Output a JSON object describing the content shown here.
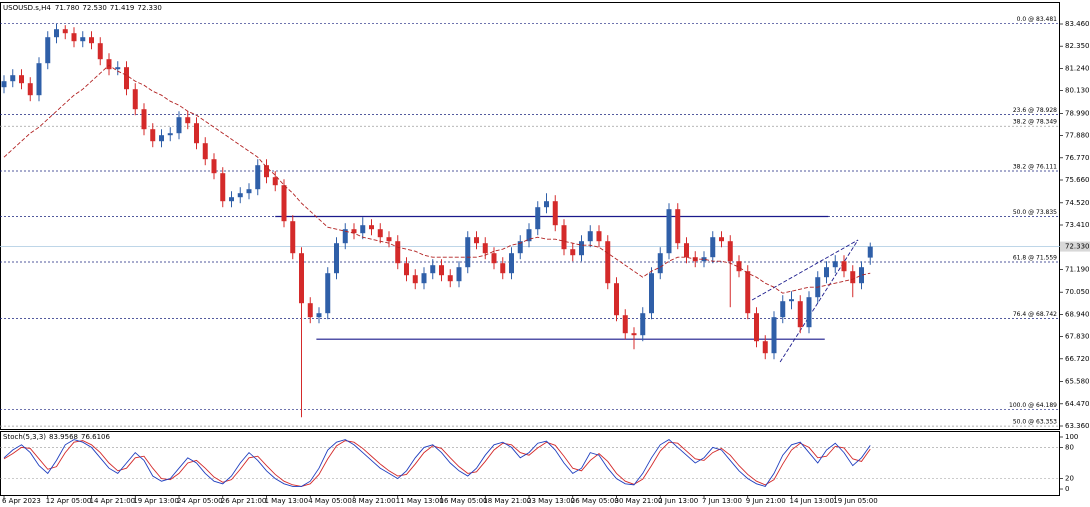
{
  "chart_data": {
    "type": "candlestick",
    "header": {
      "symbol": "USOUSD.s,H4",
      "ohlc": [
        "71.780",
        "72.530",
        "71.419",
        "72.330"
      ]
    },
    "categories": [
      "6 Apr 2023",
      null,
      null,
      null,
      null,
      "12 Apr 05:00",
      null,
      null,
      null,
      null,
      "14 Apr 21:00",
      null,
      null,
      null,
      null,
      "19 Apr 13:00",
      null,
      null,
      null,
      null,
      "24 Apr 05:00",
      null,
      null,
      null,
      null,
      "26 Apr 21:00",
      null,
      null,
      null,
      null,
      "1 May 13:00",
      null,
      null,
      null,
      null,
      "4 May 05:00",
      null,
      null,
      null,
      null,
      "8 May 21:00",
      null,
      null,
      null,
      null,
      "11 May 13:00",
      null,
      null,
      null,
      null,
      "16 May 05:00",
      null,
      null,
      null,
      null,
      "18 May 21:00",
      null,
      null,
      null,
      null,
      "23 May 13:00",
      null,
      null,
      null,
      null,
      "26 May 05:00",
      null,
      null,
      null,
      null,
      "30 May 21:00",
      null,
      null,
      null,
      null,
      "2 Jun 13:00",
      null,
      null,
      null,
      null,
      "7 Jun 13:00",
      null,
      null,
      null,
      null,
      "9 Jun 21:00",
      null,
      null,
      null,
      null,
      "14 Jun 13:00",
      null,
      null,
      null,
      null,
      "19 Jun 05:00",
      null,
      null,
      null,
      null
    ],
    "candles": [
      [
        80.3,
        80.9,
        80.0,
        80.6
      ],
      [
        80.6,
        81.2,
        80.3,
        80.9
      ],
      [
        80.9,
        81.2,
        80.2,
        80.5
      ],
      [
        80.5,
        80.8,
        79.6,
        79.9
      ],
      [
        79.9,
        81.8,
        79.6,
        81.5
      ],
      [
        81.5,
        83.1,
        81.2,
        82.8
      ],
      [
        82.8,
        83.48,
        82.5,
        83.2
      ],
      [
        83.2,
        83.4,
        82.7,
        83.0
      ],
      [
        83.0,
        83.3,
        82.3,
        82.6
      ],
      [
        82.6,
        83.1,
        82.3,
        82.8
      ],
      [
        82.8,
        83.1,
        82.2,
        82.5
      ],
      [
        82.5,
        82.8,
        81.4,
        81.7
      ],
      [
        81.7,
        82.0,
        80.9,
        81.2
      ],
      [
        81.2,
        81.6,
        80.9,
        81.3
      ],
      [
        81.3,
        81.6,
        79.9,
        80.2
      ],
      [
        80.2,
        80.5,
        78.9,
        79.2
      ],
      [
        79.2,
        79.5,
        77.9,
        78.2
      ],
      [
        78.2,
        78.5,
        77.3,
        77.6
      ],
      [
        77.6,
        78.2,
        77.3,
        77.9
      ],
      [
        77.9,
        78.3,
        77.6,
        78.0
      ],
      [
        78.0,
        79.1,
        77.7,
        78.8
      ],
      [
        78.8,
        79.1,
        78.2,
        78.5
      ],
      [
        78.5,
        78.8,
        77.2,
        77.5
      ],
      [
        77.5,
        77.8,
        76.4,
        76.7
      ],
      [
        76.7,
        77.0,
        75.7,
        76.0
      ],
      [
        76.0,
        76.3,
        74.3,
        74.6
      ],
      [
        74.6,
        75.1,
        74.3,
        74.8
      ],
      [
        74.8,
        75.3,
        74.5,
        75.0
      ],
      [
        75.0,
        75.5,
        74.7,
        75.2
      ],
      [
        75.2,
        76.7,
        74.9,
        76.4
      ],
      [
        76.4,
        76.7,
        75.5,
        75.8
      ],
      [
        75.8,
        76.1,
        75.1,
        75.4
      ],
      [
        75.4,
        75.7,
        73.3,
        73.6
      ],
      [
        73.6,
        73.9,
        71.7,
        72.0
      ],
      [
        72.0,
        72.3,
        63.8,
        69.5
      ],
      [
        69.5,
        69.8,
        68.5,
        68.8
      ],
      [
        68.8,
        69.3,
        68.5,
        69.0
      ],
      [
        69.0,
        71.3,
        68.7,
        71.0
      ],
      [
        71.0,
        72.8,
        70.7,
        72.5
      ],
      [
        72.5,
        73.5,
        72.2,
        73.2
      ],
      [
        73.2,
        73.5,
        72.7,
        73.0
      ],
      [
        73.0,
        73.8,
        72.7,
        73.4
      ],
      [
        73.4,
        73.7,
        72.9,
        73.2
      ],
      [
        73.2,
        73.5,
        72.5,
        72.8
      ],
      [
        72.8,
        73.1,
        72.3,
        72.6
      ],
      [
        72.6,
        72.9,
        71.2,
        71.5
      ],
      [
        71.5,
        71.8,
        70.6,
        70.9
      ],
      [
        70.9,
        71.2,
        70.2,
        70.5
      ],
      [
        70.5,
        71.3,
        70.2,
        71.0
      ],
      [
        71.0,
        71.7,
        70.7,
        71.4
      ],
      [
        71.4,
        71.7,
        70.6,
        70.9
      ],
      [
        70.9,
        71.2,
        70.3,
        70.6
      ],
      [
        70.6,
        71.6,
        70.3,
        71.3
      ],
      [
        71.3,
        73.1,
        71.0,
        72.8
      ],
      [
        72.8,
        73.1,
        72.2,
        72.5
      ],
      [
        72.5,
        72.8,
        71.7,
        72.0
      ],
      [
        72.0,
        72.3,
        71.2,
        71.5
      ],
      [
        71.5,
        71.8,
        70.7,
        71.0
      ],
      [
        71.0,
        72.3,
        70.7,
        72.0
      ],
      [
        72.0,
        72.9,
        71.7,
        72.6
      ],
      [
        72.6,
        73.5,
        72.3,
        73.2
      ],
      [
        73.2,
        74.6,
        72.9,
        74.3
      ],
      [
        74.3,
        75.0,
        74.0,
        74.6
      ],
      [
        74.6,
        74.9,
        73.1,
        73.4
      ],
      [
        73.4,
        73.7,
        71.9,
        72.2
      ],
      [
        72.2,
        72.5,
        71.6,
        71.9
      ],
      [
        71.9,
        72.9,
        71.6,
        72.6
      ],
      [
        72.6,
        73.4,
        72.3,
        73.1
      ],
      [
        73.1,
        73.4,
        72.3,
        72.6
      ],
      [
        72.6,
        72.9,
        70.2,
        70.5
      ],
      [
        70.5,
        70.8,
        68.6,
        68.9
      ],
      [
        68.9,
        69.2,
        67.7,
        68.0
      ],
      [
        68.0,
        68.3,
        67.2,
        67.9
      ],
      [
        67.9,
        69.3,
        67.6,
        69.0
      ],
      [
        69.0,
        71.3,
        68.7,
        71.0
      ],
      [
        71.0,
        72.3,
        70.7,
        72.0
      ],
      [
        72.0,
        74.5,
        71.7,
        74.2
      ],
      [
        74.2,
        74.5,
        72.2,
        72.5
      ],
      [
        72.5,
        72.8,
        71.5,
        71.8
      ],
      [
        71.8,
        72.1,
        71.3,
        71.6
      ],
      [
        71.6,
        72.1,
        71.3,
        71.8
      ],
      [
        71.8,
        73.1,
        71.5,
        72.8
      ],
      [
        72.8,
        73.1,
        72.3,
        72.6
      ],
      [
        72.6,
        72.9,
        69.3,
        71.6
      ],
      [
        71.6,
        71.9,
        70.8,
        71.1
      ],
      [
        71.1,
        71.4,
        68.7,
        69.0
      ],
      [
        69.0,
        69.3,
        67.3,
        67.6
      ],
      [
        67.6,
        67.9,
        66.7,
        67.0
      ],
      [
        67.0,
        69.1,
        66.7,
        68.8
      ],
      [
        68.8,
        69.9,
        68.5,
        69.6
      ],
      [
        69.6,
        70.1,
        69.2,
        69.7
      ],
      [
        69.6,
        69.9,
        68.0,
        68.3
      ],
      [
        68.3,
        70.1,
        68.0,
        69.8
      ],
      [
        69.8,
        71.1,
        69.5,
        70.8
      ],
      [
        70.8,
        71.6,
        70.5,
        71.3
      ],
      [
        71.3,
        71.9,
        71.0,
        71.6
      ],
      [
        71.6,
        71.9,
        70.8,
        71.1
      ],
      [
        71.1,
        71.4,
        69.8,
        70.5
      ],
      [
        70.5,
        71.6,
        70.2,
        71.3
      ],
      [
        71.78,
        72.53,
        71.419,
        72.33
      ]
    ],
    "bull_color": "#2f5fa8",
    "bear_color": "#d42a2a",
    "ma": {
      "color": "#b22222",
      "values": [
        76.8,
        77.2,
        77.6,
        78.0,
        78.3,
        78.7,
        79.1,
        79.5,
        79.9,
        80.2,
        80.6,
        81.0,
        81.4,
        81.1,
        80.9,
        80.6,
        80.4,
        80.1,
        79.9,
        79.6,
        79.4,
        79.1,
        78.9,
        78.6,
        78.3,
        78.0,
        77.7,
        77.4,
        77.1,
        76.8,
        76.3,
        75.9,
        75.4,
        75.0,
        74.5,
        74.1,
        73.7,
        73.3,
        73.2,
        73.1,
        73.0,
        72.8,
        72.7,
        72.6,
        72.5,
        72.3,
        72.2,
        72.1,
        71.9,
        71.8,
        71.8,
        71.8,
        71.8,
        71.8,
        71.8,
        71.9,
        72.1,
        72.2,
        72.4,
        72.5,
        72.7,
        72.8,
        72.7,
        72.7,
        72.6,
        72.5,
        72.4,
        72.4,
        72.3,
        72.0,
        71.7,
        71.4,
        71.1,
        70.8,
        71.1,
        71.3,
        71.6,
        71.8,
        71.8,
        71.7,
        71.7,
        71.6,
        71.6,
        71.5,
        71.3,
        71.0,
        70.8,
        70.5,
        70.3,
        70.0,
        70.1,
        70.2,
        70.3,
        70.3,
        70.4,
        70.5,
        70.6,
        70.7,
        70.9,
        71.0
      ]
    },
    "ylim": [
      63.21,
      84.51
    ],
    "yticks": [
      {
        "value": 83.46,
        "label": "83.460"
      },
      {
        "value": 82.35,
        "label": "82.350"
      },
      {
        "value": 81.24,
        "label": "81.240"
      },
      {
        "value": 80.13,
        "label": "80.130"
      },
      {
        "value": 78.99,
        "label": "78.990"
      },
      {
        "value": 77.88,
        "label": "77.880"
      },
      {
        "value": 76.77,
        "label": "76.770"
      },
      {
        "value": 75.66,
        "label": "75.660"
      },
      {
        "value": 74.52,
        "label": "74.520"
      },
      {
        "value": 73.41,
        "label": "73.410"
      },
      {
        "value": 71.19,
        "label": "71.190"
      },
      {
        "value": 70.05,
        "label": "70.050"
      },
      {
        "value": 68.94,
        "label": "68.940"
      },
      {
        "value": 67.83,
        "label": "67.830"
      },
      {
        "value": 66.72,
        "label": "66.720"
      },
      {
        "value": 65.58,
        "label": "65.580"
      },
      {
        "value": 64.47,
        "label": "64.470"
      },
      {
        "value": 63.36,
        "label": "63.360"
      }
    ],
    "last_price": {
      "value": 72.33,
      "label": "72.330"
    },
    "fib_levels": [
      {
        "value": 83.481,
        "label": "0.0 @ 83.481",
        "color": "#1a237e"
      },
      {
        "value": 78.928,
        "label": "23.6 @ 78.928",
        "color": "#1a237e"
      },
      {
        "value": 78.349,
        "label": "38.2 @ 78.349",
        "color": "#9e9e9e"
      },
      {
        "value": 76.111,
        "label": "38.2 @ 76.111",
        "color": "#1a237e"
      },
      {
        "value": 73.835,
        "label": "50.0 @ 73.835",
        "color": "#1a237e"
      },
      {
        "value": 71.559,
        "label": "61.8 @ 71.559",
        "color": "#1a237e"
      },
      {
        "value": 68.742,
        "label": "76.4 @ 68.742",
        "color": "#1a237e"
      },
      {
        "value": 64.189,
        "label": "100.0 @ 64.189",
        "color": "#1a237e"
      },
      {
        "value": 63.353,
        "label": "50.0 @ 63.353",
        "color": "#9e9e9e"
      }
    ],
    "levels": [
      {
        "x": [
          31,
          94.2
        ],
        "y": [
          73.835,
          73.835
        ]
      },
      {
        "x": [
          35.7,
          93.8
        ],
        "y": [
          67.7,
          67.7
        ]
      }
    ],
    "trendlines": [
      {
        "x": [
          85.5,
          97.6
        ],
        "y": [
          69.66,
          72.66
        ]
      },
      {
        "x": [
          88.7,
          97.6
        ],
        "y": [
          66.56,
          72.66
        ]
      }
    ],
    "stoch": {
      "name": "Stoch(5,3,3)",
      "ylim": [
        -11.5,
        109.6
      ],
      "yticks": [
        100,
        80,
        20,
        0
      ],
      "levels": [
        80,
        20
      ],
      "main": {
        "color": "#1f3fbf",
        "values": [
          60,
          75,
          85,
          70,
          45,
          30,
          55,
          85,
          95,
          90,
          80,
          60,
          40,
          30,
          50,
          70,
          55,
          25,
          15,
          20,
          40,
          60,
          50,
          30,
          15,
          10,
          25,
          50,
          70,
          55,
          35,
          20,
          10,
          5,
          5,
          15,
          40,
          75,
          90,
          95,
          85,
          70,
          55,
          40,
          30,
          20,
          35,
          60,
          80,
          85,
          70,
          50,
          35,
          25,
          40,
          65,
          85,
          90,
          80,
          60,
          70,
          88,
          92,
          75,
          50,
          30,
          40,
          70,
          65,
          40,
          20,
          10,
          8,
          30,
          60,
          85,
          95,
          80,
          65,
          50,
          60,
          80,
          75,
          55,
          35,
          20,
          10,
          5,
          30,
          65,
          85,
          90,
          70,
          50,
          75,
          88,
          70,
          45,
          60,
          83.9568
        ]
      },
      "signal": {
        "color": "#d42a2a",
        "values": [
          58,
          68,
          80,
          78,
          58,
          38,
          43,
          70,
          90,
          93,
          85,
          70,
          50,
          35,
          40,
          60,
          63,
          40,
          20,
          18,
          30,
          50,
          55,
          40,
          23,
          13,
          18,
          38,
          60,
          63,
          45,
          28,
          15,
          8,
          5,
          10,
          28,
          58,
          83,
          93,
          90,
          78,
          63,
          48,
          35,
          25,
          28,
          48,
          70,
          83,
          78,
          60,
          43,
          30,
          33,
          53,
          75,
          88,
          85,
          70,
          65,
          79,
          90,
          84,
          63,
          40,
          35,
          55,
          68,
          53,
          30,
          15,
          9,
          19,
          45,
          73,
          90,
          88,
          73,
          58,
          55,
          70,
          78,
          65,
          45,
          28,
          15,
          8,
          18,
          48,
          75,
          88,
          80,
          60,
          63,
          82,
          79,
          58,
          53,
          76.6106
        ]
      }
    }
  }
}
